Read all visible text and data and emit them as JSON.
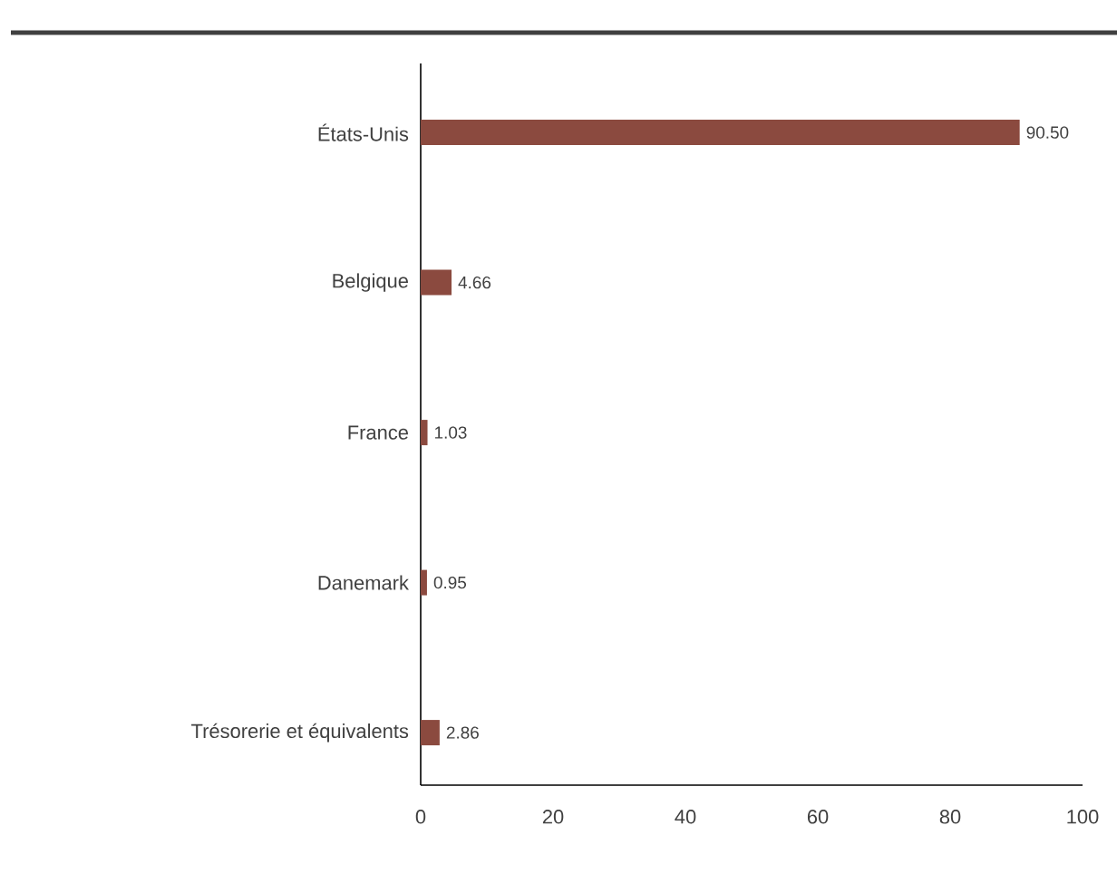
{
  "chart_data": {
    "type": "bar",
    "orientation": "horizontal",
    "categories": [
      "États-Unis",
      "Belgique",
      "France",
      "Danemark",
      "Trésorerie et équivalents"
    ],
    "values": [
      90.5,
      4.66,
      1.03,
      0.95,
      2.86
    ],
    "value_labels": [
      "90.50",
      "4.66",
      "1.03",
      "0.95",
      "2.86"
    ],
    "color": "#8b4a3f",
    "xlim": [
      0,
      100
    ],
    "xticks": [
      0,
      20,
      40,
      60,
      80,
      100
    ],
    "grid": false
  }
}
